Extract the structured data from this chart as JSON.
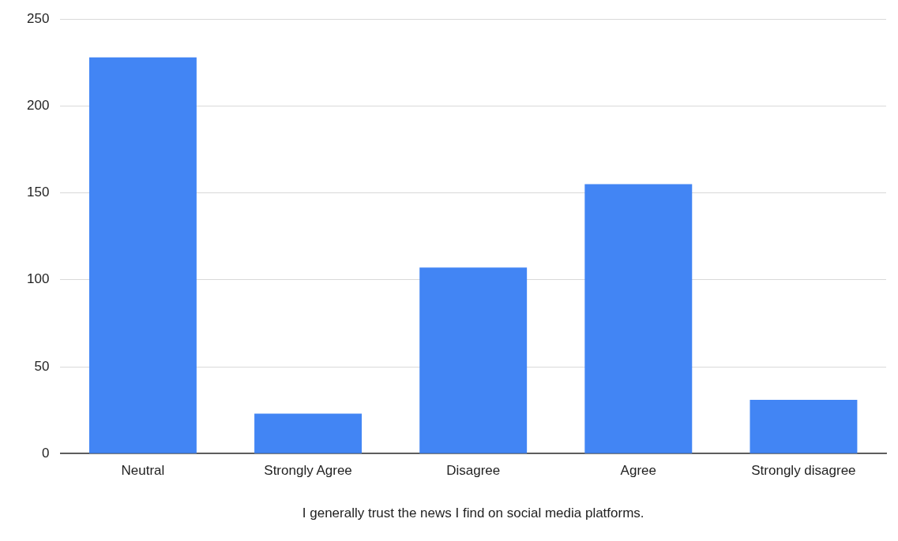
{
  "chart_data": {
    "type": "bar",
    "xlabel": "I generally trust the news I find on social media platforms.",
    "categories": [
      "Neutral",
      "Strongly Agree",
      "Disagree",
      "Agree",
      "Strongly disagree"
    ],
    "values": [
      228,
      23,
      107,
      155,
      31
    ],
    "color": "#4285f4",
    "ylim": [
      0,
      250
    ],
    "yticks": [
      0,
      50,
      100,
      150,
      200,
      250
    ],
    "grid": "y",
    "legend": false
  }
}
